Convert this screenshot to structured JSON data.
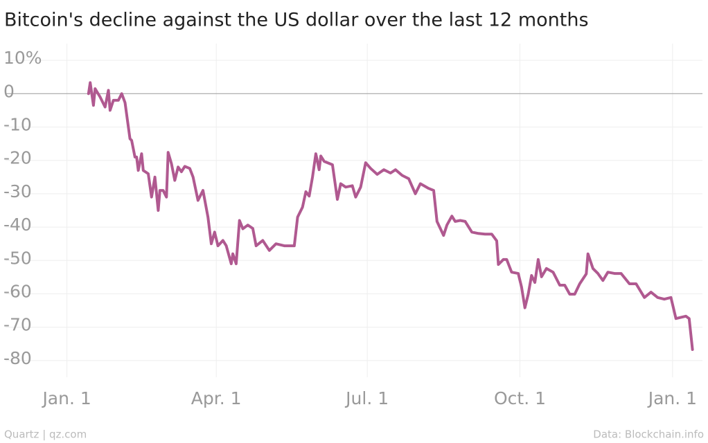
{
  "chart_data": {
    "type": "line",
    "title": "Bitcoin's decline against the US dollar over the last 12 months",
    "source": "Data: Blockchain.info",
    "credit": "Quartz | qz.com",
    "x": [
      13,
      14,
      16,
      17,
      20,
      23,
      25,
      26,
      28,
      31,
      33,
      35,
      38,
      39,
      41,
      42,
      43,
      45,
      46,
      49,
      51,
      53,
      55,
      56,
      58,
      60,
      61,
      63,
      65,
      67,
      69,
      71,
      74,
      76,
      79,
      82,
      85,
      87,
      89,
      91,
      94,
      96,
      99,
      100,
      102,
      104,
      106,
      109,
      112,
      114,
      118,
      122,
      126,
      131,
      137,
      139,
      142,
      144,
      146,
      148,
      150,
      152,
      153,
      155,
      160,
      163,
      165,
      168,
      172,
      174,
      177,
      180,
      183,
      187,
      191,
      195,
      198,
      202,
      206,
      210,
      213,
      218,
      221,
      223,
      227,
      229,
      232,
      234,
      237,
      240,
      244,
      248,
      252,
      256,
      259,
      260,
      263,
      265,
      268,
      272,
      274,
      276,
      278,
      280,
      282,
      284,
      286,
      289,
      293,
      297,
      300,
      303,
      306,
      309,
      313,
      314,
      317,
      320,
      323,
      326,
      330,
      334,
      339,
      343,
      348,
      352,
      356,
      360,
      364,
      367,
      373,
      375,
      377
    ],
    "series": [
      {
        "name": "Bitcoin",
        "color": "#b05990",
        "values": [
          0,
          3.3,
          -3.5,
          1.5,
          -1,
          -4,
          1,
          -5,
          -2,
          -2,
          0,
          -2.7,
          -13.5,
          -14,
          -19,
          -19,
          -23,
          -18,
          -23,
          -24,
          -31,
          -25,
          -35,
          -29,
          -29,
          -31,
          -17.6,
          -21,
          -26,
          -22,
          -23.4,
          -21.8,
          -22.4,
          -25,
          -32,
          -29,
          -37,
          -45,
          -41.5,
          -45.6,
          -44,
          -45.6,
          -51,
          -48,
          -51,
          -38,
          -40.5,
          -39.4,
          -40.4,
          -45.6,
          -44,
          -47,
          -45,
          -45.6,
          -45.6,
          -37,
          -34,
          -29.4,
          -30.7,
          -25,
          -18,
          -22.8,
          -18.7,
          -20.3,
          -21.3,
          -31.7,
          -27,
          -28,
          -27.6,
          -31,
          -28,
          -20.7,
          -22.4,
          -24.2,
          -22.8,
          -23.8,
          -22.8,
          -24.5,
          -25.5,
          -30,
          -27,
          -28.4,
          -29,
          -38.3,
          -42.5,
          -39.4,
          -36.7,
          -38.3,
          -38,
          -38.3,
          -41.5,
          -41.9,
          -42.1,
          -42.1,
          -44.1,
          -51.2,
          -49.7,
          -49.7,
          -53.5,
          -53.9,
          -58,
          -64.2,
          -60.1,
          -54.5,
          -56.6,
          -49.7,
          -54.9,
          -52.4,
          -53.5,
          -57.4,
          -57.4,
          -60.1,
          -60.1,
          -57,
          -54,
          -48,
          -52.4,
          -53.9,
          -56,
          -53.5,
          -53.9,
          -53.9,
          -57,
          -57,
          -61.1,
          -59.5,
          -61.1,
          -61.6,
          -61.1,
          -67.4,
          -66.7,
          -67.4,
          -76.7
        ]
      }
    ],
    "xlim": [
      -37,
      383
    ],
    "xticks": [
      {
        "value": 0,
        "label": "Jan. 1"
      },
      {
        "value": 90,
        "label": "Apr. 1"
      },
      {
        "value": 181,
        "label": "Jul. 1"
      },
      {
        "value": 273,
        "label": "Oct. 1"
      },
      {
        "value": 365,
        "label": "Jan. 1"
      }
    ],
    "ylim": [
      -85,
      15
    ],
    "yticks": [
      {
        "value": 10,
        "label": "10%"
      },
      0,
      -10,
      -20,
      -30,
      -40,
      -50,
      -60,
      -70,
      -80
    ],
    "grid": true
  }
}
